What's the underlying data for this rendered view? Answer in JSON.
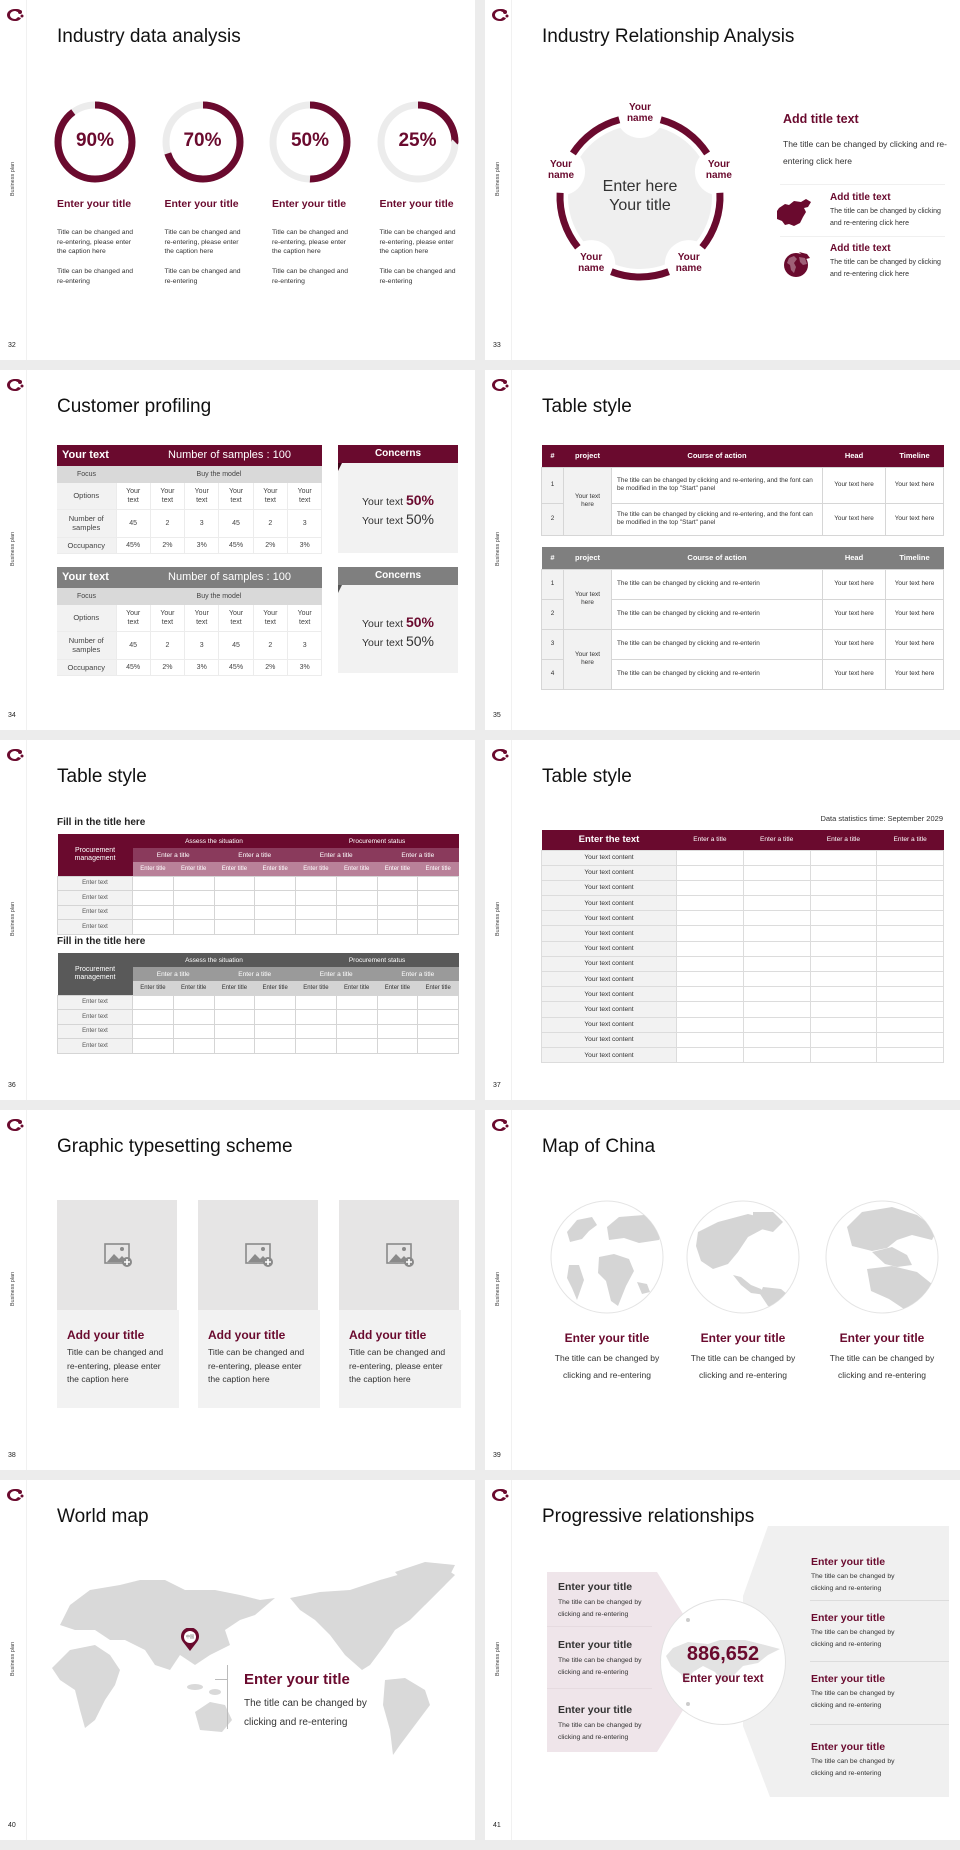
{
  "common": {
    "side_label": "Business plan",
    "colors": {
      "accent": "#6a0a2e",
      "gray_header": "#7f7f7f",
      "dark_gray_header": "#595959",
      "light_fill": "#f2f2f2",
      "ring_track": "#ececec",
      "map_gray": "#d9d9d9"
    }
  },
  "slides": {
    "s32": {
      "page": "32",
      "title": "Industry data analysis",
      "items": [
        {
          "percent": 90,
          "label": "90%",
          "title": "Enter your title",
          "text1": "Title can be changed and re-entering, please enter the caption here",
          "text2": "Title can be changed and re-entering"
        },
        {
          "percent": 70,
          "label": "70%",
          "title": "Enter your title",
          "text1": "Title can be changed and re-entering, please enter the caption here",
          "text2": "Title can be changed and re-entering"
        },
        {
          "percent": 50,
          "label": "50%",
          "title": "Enter your title",
          "text1": "Title can be changed and re-entering, please enter the caption here",
          "text2": "Title can be changed and re-entering"
        },
        {
          "percent": 25,
          "label": "25%",
          "title": "Enter your title",
          "text1": "Title can be changed and re-entering, please enter the caption here",
          "text2": "Title can be changed and re-entering"
        }
      ]
    },
    "s33": {
      "page": "33",
      "title": "Industry Relationship Analysis",
      "center_line1": "Enter here",
      "center_line2": "Your title",
      "names": [
        {
          "line1": "Your",
          "line2": "name"
        },
        {
          "line1": "Your",
          "line2": "name"
        },
        {
          "line1": "Your",
          "line2": "name"
        },
        {
          "line1": "Your",
          "line2": "name"
        },
        {
          "line1": "Your",
          "line2": "name"
        }
      ],
      "main_title": "Add title text",
      "main_text": "The title can be changed by clicking and re-entering click here",
      "entries": [
        {
          "icon": "china-map-icon",
          "title": "Add title text",
          "text": "The title can be changed by clicking and re-entering click here"
        },
        {
          "icon": "globe-icon",
          "title": "Add title text",
          "text": "The title can be changed by clicking and re-entering click here"
        }
      ]
    },
    "s34": {
      "page": "34",
      "title": "Customer profiling",
      "tables": [
        {
          "variant": "maroon",
          "header_left": "Your text",
          "header_right": "Number of samples : 100",
          "focus_label": "Focus",
          "focus_value": "Buy the model",
          "rows": [
            {
              "label": "Options",
              "cells": [
                "Your text",
                "Your text",
                "Your text",
                "Your text",
                "Your text",
                "Your text"
              ]
            },
            {
              "label": "Number of samples",
              "cells": [
                "45",
                "2",
                "3",
                "45",
                "2",
                "3"
              ]
            },
            {
              "label": "Occupancy",
              "cells": [
                "45%",
                "2%",
                "3%",
                "45%",
                "2%",
                "3%"
              ]
            }
          ],
          "concerns": {
            "title": "Concerns",
            "lines": [
              {
                "text": "Your text",
                "value": "50%"
              },
              {
                "text": "Your text",
                "value": "50%"
              }
            ]
          }
        },
        {
          "variant": "gray",
          "header_left": "Your text",
          "header_right": "Number of samples : 100",
          "focus_label": "Focus",
          "focus_value": "Buy the model",
          "rows": [
            {
              "label": "Options",
              "cells": [
                "Your text",
                "Your text",
                "Your text",
                "Your text",
                "Your text",
                "Your text"
              ]
            },
            {
              "label": "Number of samples",
              "cells": [
                "45",
                "2",
                "3",
                "45",
                "2",
                "3"
              ]
            },
            {
              "label": "Occupancy",
              "cells": [
                "45%",
                "2%",
                "3%",
                "45%",
                "2%",
                "3%"
              ]
            }
          ],
          "concerns": {
            "title": "Concerns",
            "lines": [
              {
                "text": "Your text",
                "value": "50%"
              },
              {
                "text": "Your text",
                "value": "50%"
              }
            ]
          }
        }
      ]
    },
    "s35": {
      "page": "35",
      "title": "Table style",
      "tables": [
        {
          "variant": "maroon",
          "headers": [
            "#",
            "project",
            "Course of action",
            "Head",
            "Timeline"
          ],
          "projects": [
            "Your text here"
          ],
          "rows": [
            {
              "num": "1",
              "course": "The title can be changed by clicking and re-entering, and the font can be modified in the top \"Start\" panel",
              "head": "Your text here",
              "timeline": "Your text here"
            },
            {
              "num": "2",
              "course": "The title can be changed by clicking and re-entering, and the font can be modified in the top \"Start\" panel",
              "head": "Your text here",
              "timeline": "Your text here"
            }
          ]
        },
        {
          "variant": "gray",
          "headers": [
            "#",
            "project",
            "Course of action",
            "Head",
            "Timeline"
          ],
          "projects": [
            "Your text here",
            "Your text here"
          ],
          "rows": [
            {
              "num": "1",
              "course": "The title can be changed by clicking and re-enterin",
              "head": "Your text here",
              "timeline": "Your text here"
            },
            {
              "num": "2",
              "course": "The title can be changed by clicking and re-enterin",
              "head": "Your text here",
              "timeline": "Your text here"
            },
            {
              "num": "3",
              "course": "The title can be changed by clicking and re-enterin",
              "head": "Your text here",
              "timeline": "Your text here"
            },
            {
              "num": "4",
              "course": "The title can be changed by clicking and re-enterin",
              "head": "Your text here",
              "timeline": "Your text here"
            }
          ]
        }
      ]
    },
    "s36": {
      "page": "36",
      "title": "Table style",
      "tables": [
        {
          "variant": "maroon",
          "heading": "Fill in the title here",
          "corner": "Procurement management",
          "groups": [
            "Assess the situation",
            "Procurement status"
          ],
          "subgroups": [
            "Enter a title",
            "Enter a title",
            "Enter a title",
            "Enter a title"
          ],
          "cols": [
            "Enter title",
            "Enter title",
            "Enter title",
            "Enter title",
            "Enter title",
            "Enter title",
            "Enter title",
            "Enter title"
          ],
          "rows": [
            "Enter text",
            "Enter text",
            "Enter text",
            "Enter text"
          ]
        },
        {
          "variant": "gray",
          "heading": "Fill in the title here",
          "corner": "Procurement management",
          "groups": [
            "Assess the situation",
            "Procurement status"
          ],
          "subgroups": [
            "Enter a title",
            "Enter a title",
            "Enter a title",
            "Enter a title"
          ],
          "cols": [
            "Enter title",
            "Enter title",
            "Enter title",
            "Enter title",
            "Enter title",
            "Enter title",
            "Enter title",
            "Enter title"
          ],
          "rows": [
            "Enter text",
            "Enter text",
            "Enter text",
            "Enter text"
          ]
        }
      ]
    },
    "s37": {
      "page": "37",
      "title": "Table style",
      "stamp": "Data statistics time: September 2029",
      "header_first": "Enter the text",
      "headers": [
        "Enter a title",
        "Enter a title",
        "Enter a title",
        "Enter a title"
      ],
      "rows": [
        "Your text content",
        "Your text content",
        "Your text content",
        "Your text content",
        "Your text content",
        "Your text content",
        "Your text content",
        "Your text content",
        "Your text content",
        "Your text content",
        "Your text content",
        "Your text content",
        "Your text content",
        "Your text content"
      ]
    },
    "s38": {
      "page": "38",
      "title": "Graphic typesetting scheme",
      "cards": [
        {
          "title": "Add your title",
          "text": "Title can be changed and re-entering, please enter the caption here"
        },
        {
          "title": "Add your title",
          "text": "Title can be changed and re-entering, please enter the caption here"
        },
        {
          "title": "Add your title",
          "text": "Title can be changed and re-entering, please enter the caption here"
        }
      ]
    },
    "s39": {
      "page": "39",
      "title": "Map of China",
      "globes": [
        {
          "view": "africa-europe",
          "title": "Enter your title",
          "text": "The title can be changed by clicking and re-entering"
        },
        {
          "view": "north-america",
          "title": "Enter your title",
          "text": "The title can be changed by clicking and re-entering"
        },
        {
          "view": "arctic-europe",
          "title": "Enter your title",
          "text": "The title can be changed by clicking and re-entering"
        }
      ]
    },
    "s40": {
      "page": "40",
      "title": "World map",
      "pin_label": "中国",
      "heading": "Enter your title",
      "text": "The title can be changed by clicking and re-entering"
    },
    "s41": {
      "page": "41",
      "title": "Progressive relationships",
      "number": "886,652",
      "number_caption": "Enter your text",
      "left_items": [
        {
          "title": "Enter your title",
          "text": "The title can be changed by clicking and re-entering"
        },
        {
          "title": "Enter your title",
          "text": "The title can be changed by clicking and re-entering"
        },
        {
          "title": "Enter your title",
          "text": "The title can be changed by clicking and re-entering"
        }
      ],
      "right_items": [
        {
          "title": "Enter your title",
          "text": "The title can be changed by clicking and re-entering"
        },
        {
          "title": "Enter your title",
          "text": "The title can be changed by clicking and re-entering"
        },
        {
          "title": "Enter your title",
          "text": "The title can be changed by clicking and re-entering"
        },
        {
          "title": "Enter your title",
          "text": "The title can be changed by clicking and re-entering"
        }
      ]
    }
  }
}
